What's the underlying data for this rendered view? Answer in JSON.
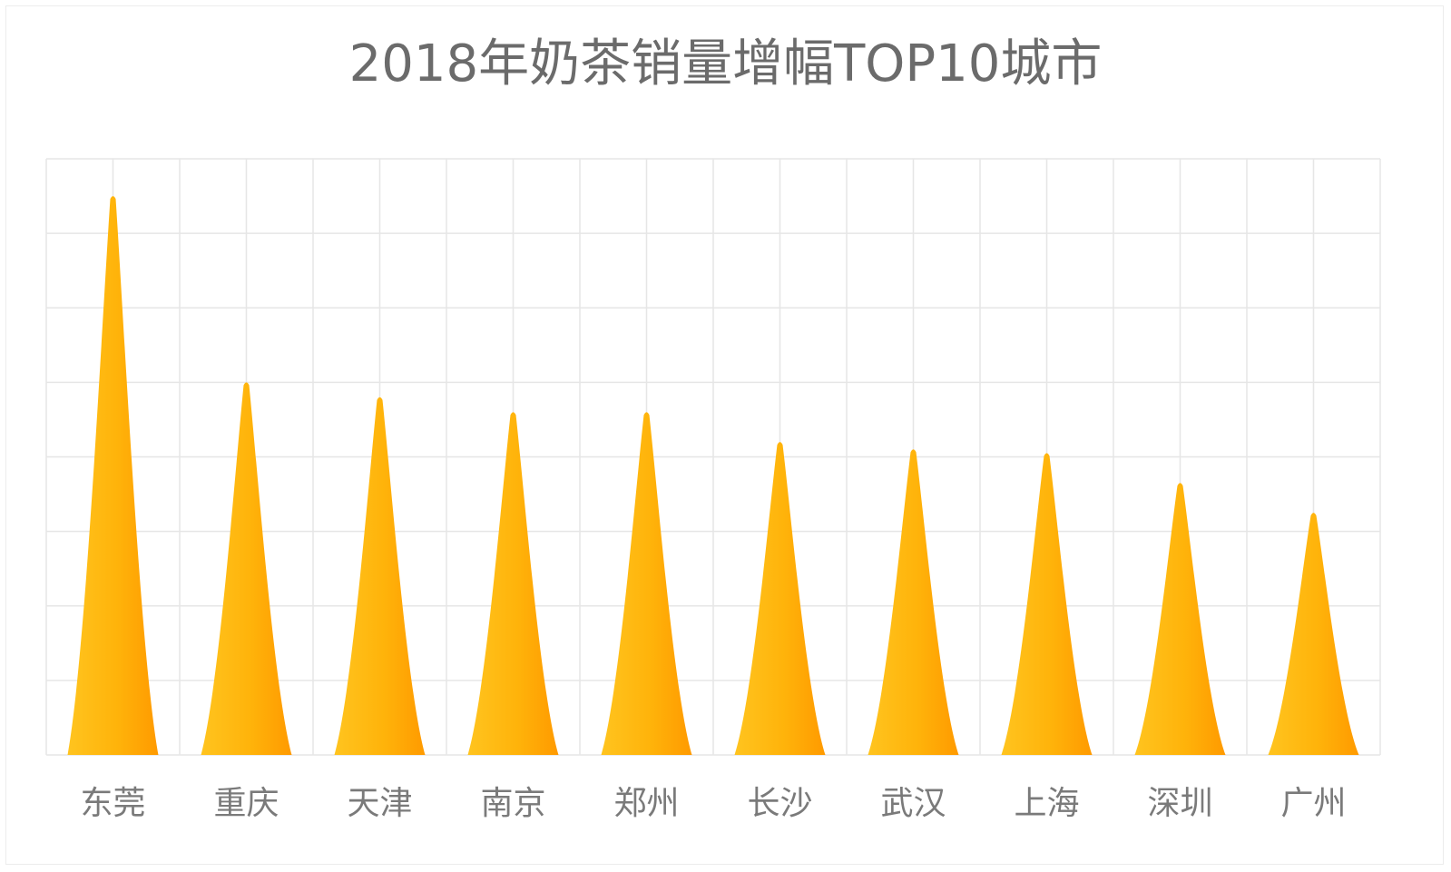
{
  "chart_data": {
    "type": "bar",
    "title": "2018年奶茶销量增幅TOP10城市",
    "xlabel": "",
    "ylabel": "",
    "categories": [
      "东莞",
      "重庆",
      "天津",
      "南京",
      "郑州",
      "长沙",
      "武汉",
      "上海",
      "深圳",
      "广州"
    ],
    "values": [
      7.5,
      5.0,
      4.8,
      4.6,
      4.6,
      4.2,
      4.1,
      4.05,
      3.65,
      3.25
    ],
    "ylim": [
      0,
      8
    ],
    "grid": true,
    "legend": "none",
    "bar_shape": "peak",
    "colors": {
      "bar_light": "#ffc21a",
      "bar_dark": "#ff9e00",
      "grid": "#e6e6e6",
      "title": "#6b6b6b",
      "label": "#7a7a7a"
    }
  }
}
